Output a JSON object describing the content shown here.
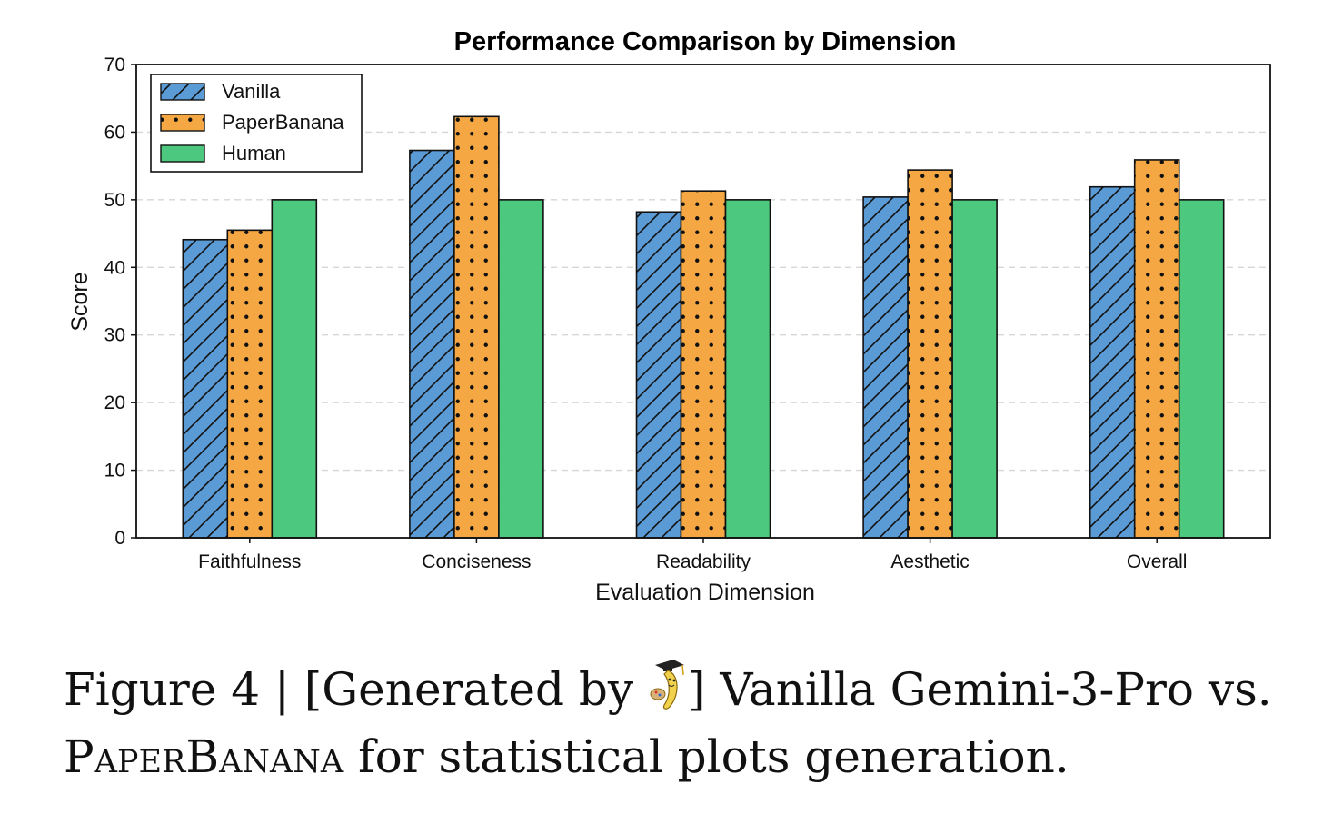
{
  "chart_data": {
    "type": "bar",
    "title": "Performance Comparison by Dimension",
    "xlabel": "Evaluation Dimension",
    "ylabel": "Score",
    "ylim": [
      0,
      70
    ],
    "yticks": [
      0,
      10,
      20,
      30,
      40,
      50,
      60,
      70
    ],
    "grid": "horizontal dashed",
    "legend_position": "top-left",
    "categories": [
      "Faithfulness",
      "Conciseness",
      "Readability",
      "Aesthetic",
      "Overall"
    ],
    "series": [
      {
        "name": "Vanilla",
        "values": [
          44.1,
          57.3,
          48.2,
          50.4,
          51.9
        ],
        "color": "#5B9BD5",
        "hatch": "diagonal"
      },
      {
        "name": "PaperBanana",
        "values": [
          45.5,
          62.3,
          51.3,
          54.4,
          55.9
        ],
        "color": "#F4A742",
        "hatch": "dots"
      },
      {
        "name": "Human",
        "values": [
          50,
          50,
          50,
          50,
          50
        ],
        "color": "#4CC97E",
        "hatch": "none"
      }
    ]
  },
  "caption": {
    "prefix": "Figure 4 | [Generated by ",
    "icon": "banana-scholar-icon",
    "middle": "] Vanilla Gemini-3-Pro vs.",
    "brand": "PaperBanana",
    "suffix": " for statistical plots generation."
  }
}
